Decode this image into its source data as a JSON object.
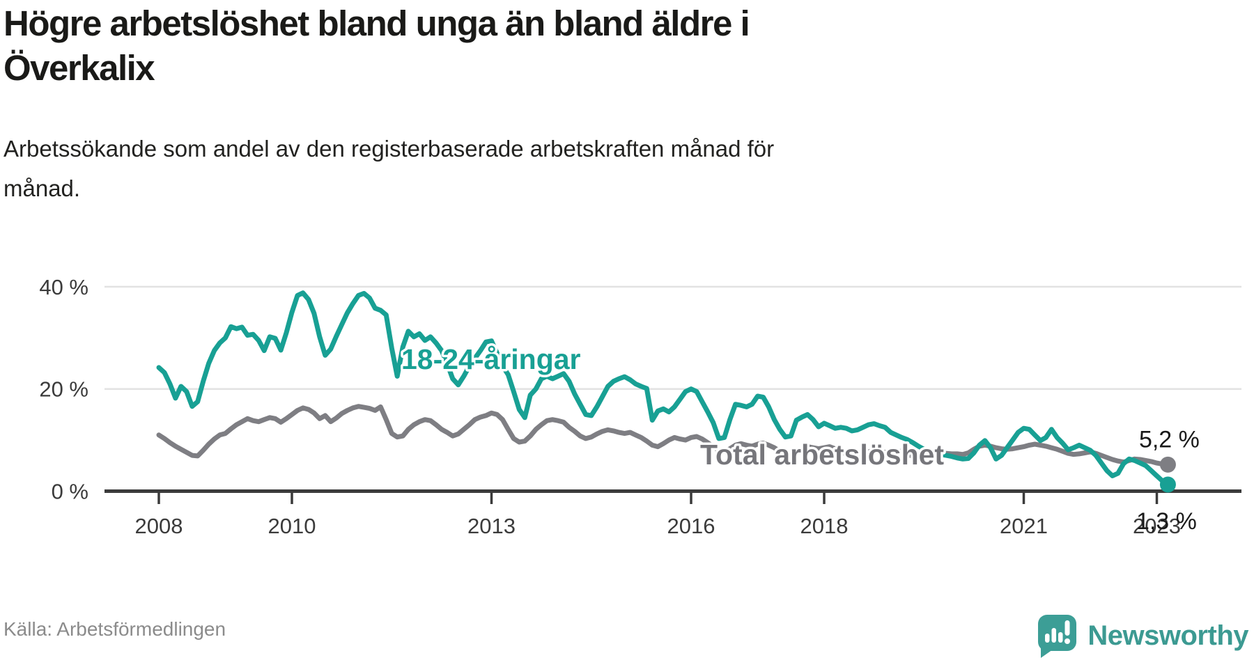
{
  "header": {
    "title": "Högre arbetslöshet bland unga än bland äldre i Överkalix",
    "subtitle": "Arbetssökande som andel av den registerbaserade arbetskraften månad för månad."
  },
  "footer": {
    "source": "Källa: Arbetsförmedlingen",
    "brand": "Newsworthy"
  },
  "colors": {
    "youth_line": "#18a094",
    "total_line": "#7e7e83",
    "total_label": "#76767b",
    "axis": "#3b3b3b",
    "gridline": "#e2e2e2",
    "brand_teal": "#3c9a92"
  },
  "chart_data": {
    "type": "line",
    "title": "Högre arbetslöshet bland unga än bland äldre i Överkalix",
    "xlabel": "",
    "ylabel": "",
    "unit": "%",
    "grid": "horizontal",
    "x_start": "2008-01",
    "x_end": "2023-03",
    "x_tick_years": [
      2008,
      2010,
      2013,
      2016,
      2018,
      2021,
      2023
    ],
    "y_ticks": [
      {
        "label": "0 %",
        "value": 0
      },
      {
        "label": "20 %",
        "value": 20
      },
      {
        "label": "40 %",
        "value": 40
      }
    ],
    "ylim": [
      0,
      44
    ],
    "series": [
      {
        "name": "18-24-åringar",
        "color": "#18a094",
        "label_color": "#18a094",
        "end_label": "1,3 %",
        "end_value": 1.3,
        "values": [
          24.2,
          23.2,
          21.0,
          18.2,
          20.5,
          19.5,
          16.6,
          17.5,
          21.5,
          25.0,
          27.5,
          29.0,
          30.0,
          32.2,
          31.8,
          32.1,
          30.5,
          30.7,
          29.5,
          27.5,
          30.2,
          29.9,
          27.6,
          31.0,
          35.0,
          38.3,
          38.8,
          37.5,
          34.8,
          30.2,
          26.6,
          27.8,
          30.3,
          32.6,
          34.9,
          36.7,
          38.3,
          38.7,
          37.8,
          35.8,
          35.4,
          34.5,
          28.0,
          22.5,
          28.2,
          31.3,
          30.2,
          30.8,
          29.5,
          30.2,
          29.0,
          27.5,
          25.0,
          22.0,
          20.8,
          22.5,
          24.5,
          26.0,
          27.5,
          29.2,
          29.4,
          27.0,
          24.5,
          22.8,
          19.5,
          16.0,
          14.4,
          18.8,
          20.0,
          22.0,
          22.5,
          22.0,
          22.5,
          23.0,
          21.5,
          19.0,
          17.0,
          15.0,
          14.8,
          16.5,
          18.5,
          20.5,
          21.5,
          22.0,
          22.4,
          21.8,
          21.0,
          20.5,
          20.1,
          13.9,
          15.7,
          16.1,
          15.5,
          16.5,
          18.0,
          19.5,
          20.0,
          19.5,
          17.5,
          15.5,
          13.4,
          10.3,
          10.5,
          14.0,
          17.0,
          16.8,
          16.5,
          17.0,
          18.6,
          18.4,
          16.5,
          14.0,
          12.1,
          10.6,
          10.8,
          13.9,
          14.5,
          15.0,
          14.0,
          12.6,
          13.3,
          12.8,
          12.3,
          12.5,
          12.3,
          11.8,
          12.0,
          12.5,
          13.0,
          13.2,
          12.8,
          12.5,
          11.5,
          11.0,
          10.5,
          10.1,
          9.5,
          8.8,
          8.2,
          7.8,
          7.5,
          7.2,
          7.0,
          6.8,
          6.5,
          6.3,
          6.4,
          7.5,
          9.0,
          9.9,
          8.5,
          6.3,
          7.0,
          8.5,
          10.0,
          11.5,
          12.3,
          12.1,
          11.0,
          9.9,
          10.5,
          12.1,
          10.5,
          9.4,
          8.1,
          8.5,
          9.0,
          8.5,
          8.0,
          7.0,
          5.5,
          4.0,
          3.0,
          3.5,
          5.4,
          6.3,
          6.0,
          5.5,
          5.0,
          4.0,
          3.0,
          2.0,
          1.3
        ]
      },
      {
        "name": "Total arbetslöshet",
        "color": "#7e7e83",
        "label_color": "#76767b",
        "end_label": "5,2 %",
        "end_value": 5.2,
        "values": [
          11.0,
          10.3,
          9.5,
          8.8,
          8.2,
          7.6,
          7.0,
          6.9,
          8.0,
          9.2,
          10.2,
          11.0,
          11.3,
          12.2,
          13.0,
          13.6,
          14.2,
          13.8,
          13.6,
          14.0,
          14.4,
          14.2,
          13.5,
          14.2,
          15.0,
          15.8,
          16.3,
          16.0,
          15.3,
          14.2,
          14.8,
          13.6,
          14.3,
          15.2,
          15.8,
          16.3,
          16.6,
          16.4,
          16.2,
          15.8,
          16.5,
          14.0,
          11.3,
          10.6,
          10.8,
          12.1,
          13.0,
          13.6,
          14.0,
          13.8,
          13.0,
          12.1,
          11.5,
          10.8,
          11.2,
          12.1,
          13.0,
          14.0,
          14.5,
          14.8,
          15.3,
          15.0,
          14.0,
          12.1,
          10.3,
          9.6,
          9.8,
          10.8,
          12.1,
          13.0,
          13.8,
          14.0,
          13.8,
          13.5,
          12.5,
          11.7,
          10.8,
          10.3,
          10.6,
          11.2,
          11.7,
          12.0,
          11.8,
          11.5,
          11.3,
          11.5,
          11.0,
          10.5,
          9.8,
          9.0,
          8.7,
          9.3,
          10.0,
          10.5,
          10.2,
          10.0,
          10.5,
          10.7,
          10.2,
          9.5,
          8.7,
          8.0,
          7.7,
          8.3,
          9.0,
          9.3,
          9.0,
          8.8,
          9.2,
          9.4,
          9.0,
          8.5,
          7.8,
          7.2,
          7.0,
          7.5,
          8.2,
          8.7,
          8.5,
          8.3,
          8.5,
          8.7,
          8.3,
          7.8,
          7.2,
          6.7,
          6.5,
          7.0,
          7.7,
          8.0,
          7.8,
          7.6,
          7.8,
          8.0,
          7.7,
          7.3,
          6.8,
          6.4,
          6.3,
          6.8,
          7.3,
          7.5,
          7.4,
          7.3,
          7.3,
          7.2,
          7.5,
          8.2,
          8.8,
          9.0,
          8.8,
          8.5,
          8.3,
          8.2,
          8.3,
          8.5,
          8.7,
          9.0,
          9.2,
          9.0,
          8.8,
          8.5,
          8.2,
          7.8,
          7.4,
          7.2,
          7.3,
          7.5,
          7.7,
          7.4,
          7.0,
          6.6,
          6.2,
          5.9,
          5.7,
          6.0,
          6.3,
          6.2,
          6.0,
          5.8,
          5.5,
          5.3,
          5.2
        ]
      }
    ]
  }
}
